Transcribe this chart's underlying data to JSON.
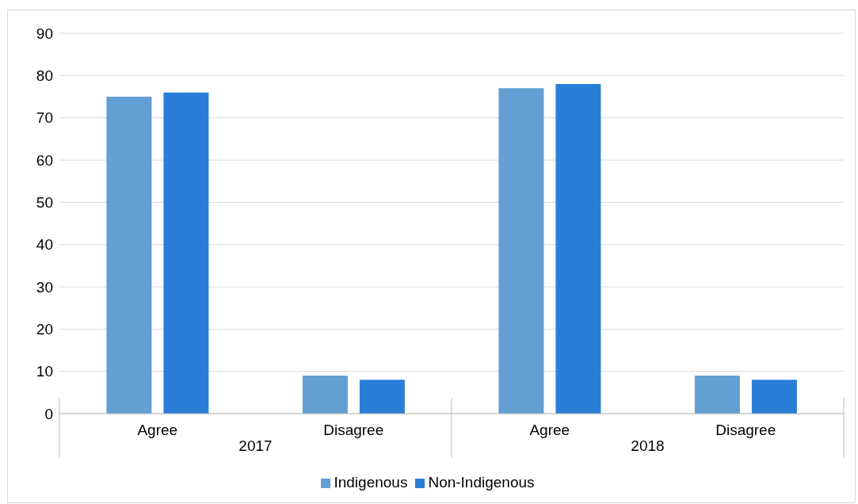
{
  "chart_data": {
    "type": "bar",
    "categories": [
      "Agree",
      "Disagree",
      "Agree",
      "Disagree"
    ],
    "series": [
      {
        "name": "Indigenous",
        "color": "#639fd3",
        "values": [
          75,
          9,
          77,
          9
        ]
      },
      {
        "name": "Non-Indigenous",
        "color": "#2b7ed8",
        "values": [
          76,
          8,
          78,
          8
        ]
      }
    ],
    "ylim": [
      0,
      90
    ],
    "yticks": [
      0,
      10,
      20,
      30,
      40,
      50,
      60,
      70,
      80,
      90
    ],
    "grid": "y",
    "legend": "bottom",
    "annotations": [
      "2017",
      "2018"
    ]
  }
}
